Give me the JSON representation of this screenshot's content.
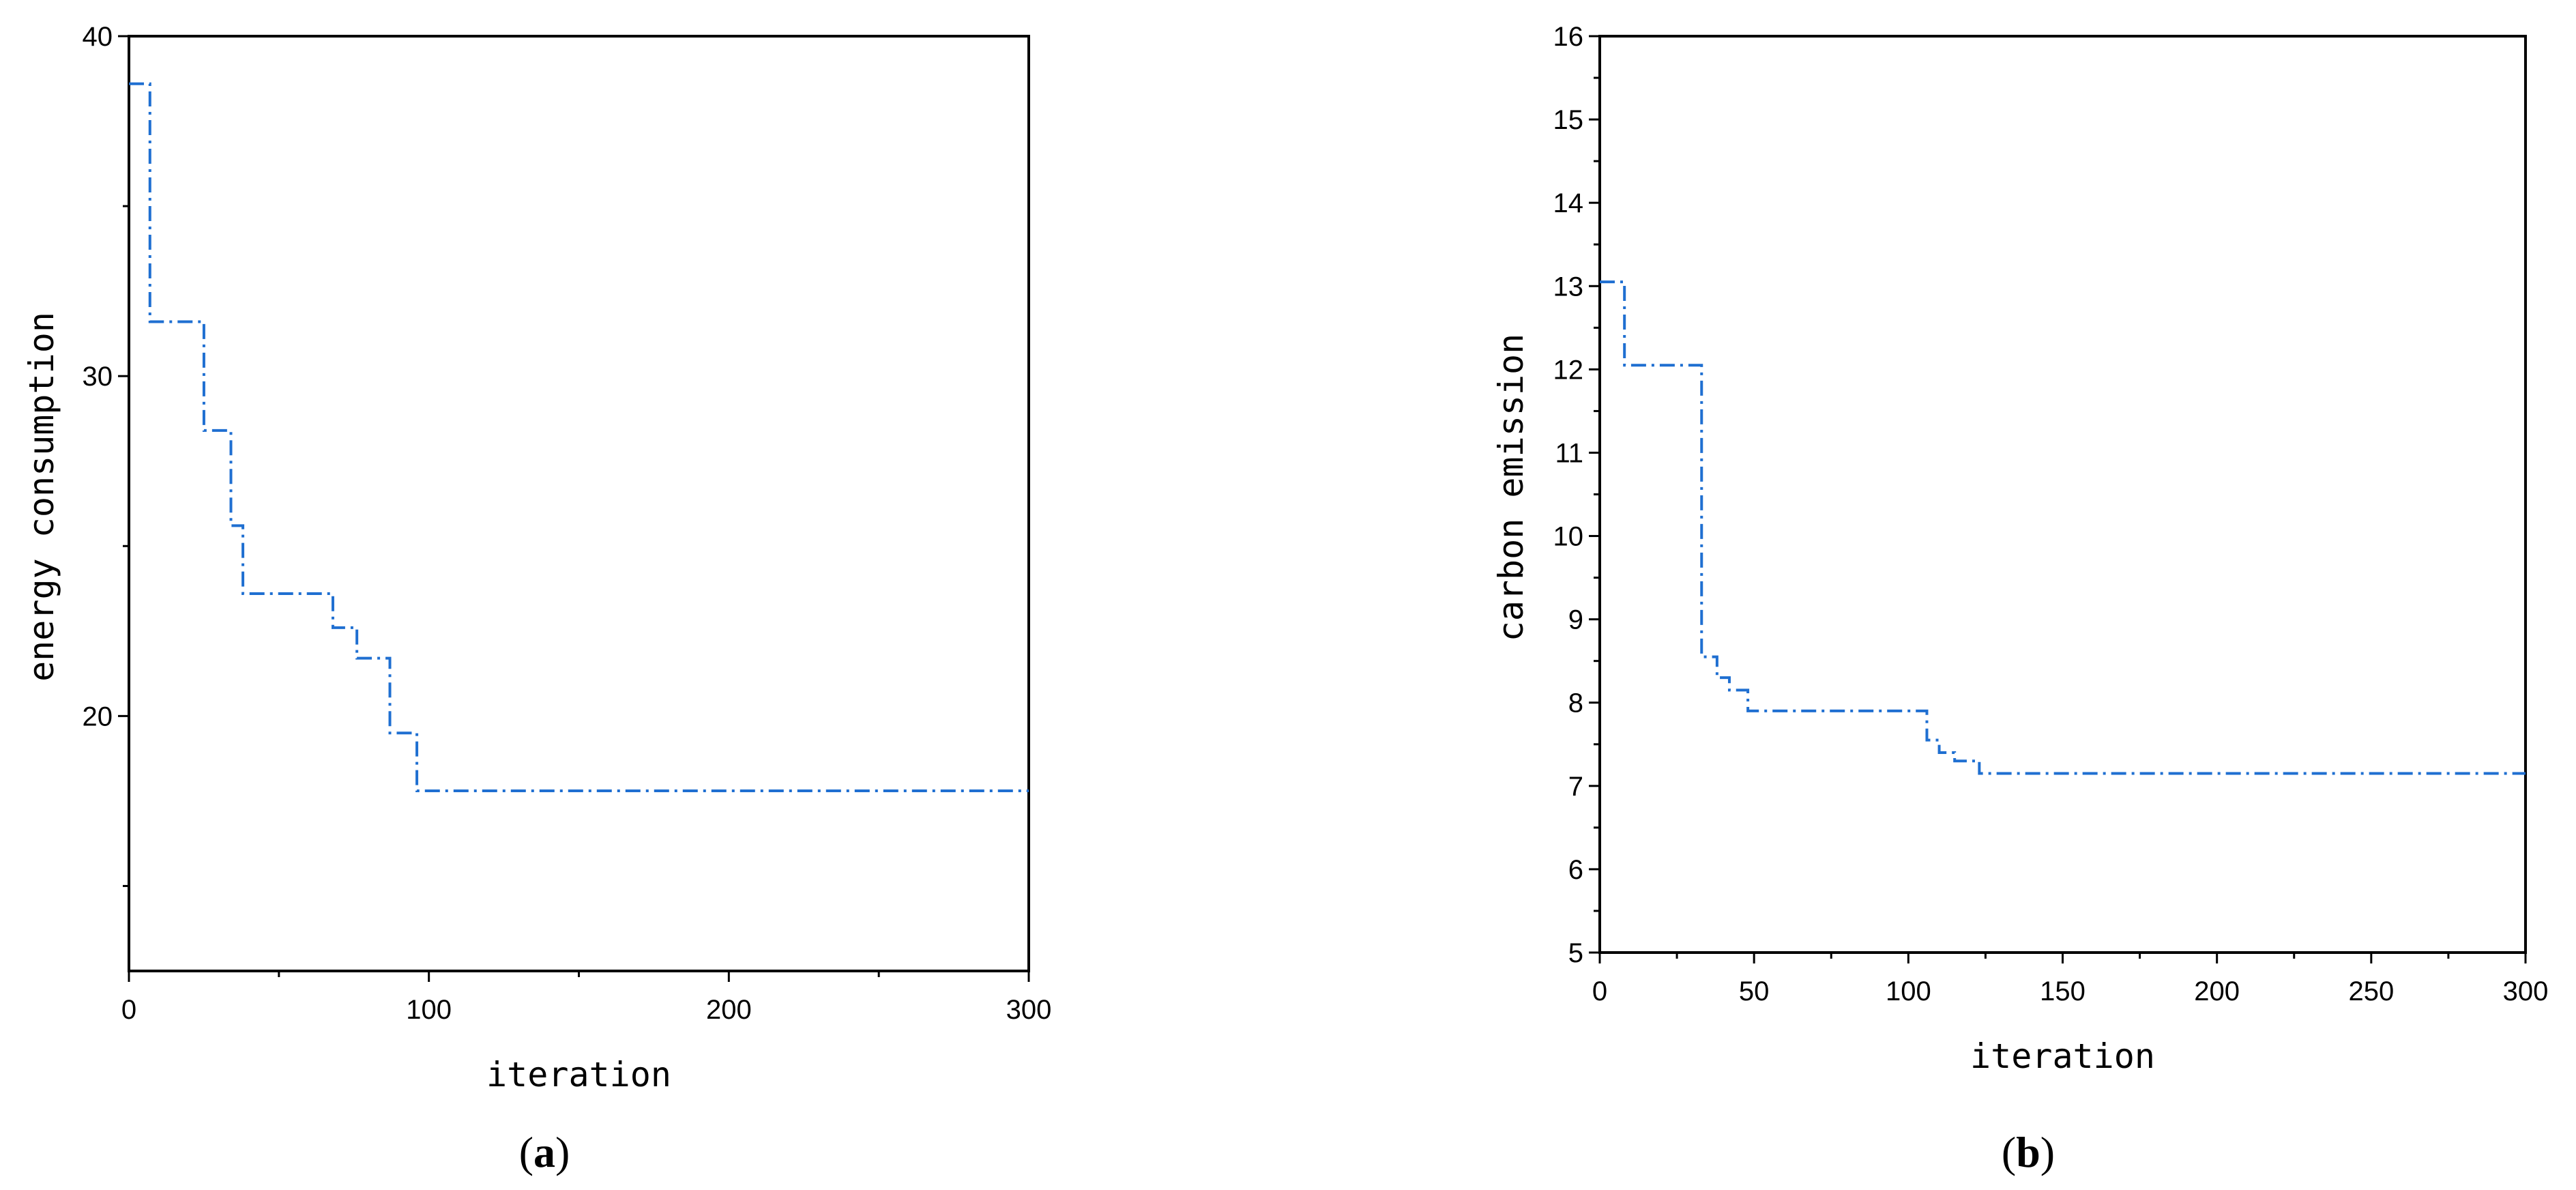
{
  "chart_data": [
    {
      "type": "line",
      "panel_label": "(a)",
      "panel_letter": "a",
      "xlabel": "iteration",
      "ylabel": "energy consumption",
      "xlim": [
        0,
        300
      ],
      "ylim": [
        12.5,
        40
      ],
      "xticks": [
        0,
        100,
        200,
        300
      ],
      "xticks_minor": [
        50,
        150,
        250
      ],
      "yticks": [
        20,
        30,
        40
      ],
      "yticks_minor": [
        15,
        25,
        35
      ],
      "line_style": "dash-dot",
      "line_color": "#1f6fd1",
      "series": [
        {
          "step": true,
          "x": [
            0,
            7,
            25,
            34,
            38,
            68,
            76,
            87,
            96,
            300
          ],
          "values": [
            38.6,
            31.6,
            28.4,
            25.6,
            23.6,
            22.6,
            21.7,
            19.5,
            17.8,
            17.8
          ]
        }
      ]
    },
    {
      "type": "line",
      "panel_label": "(b)",
      "panel_letter": "b",
      "xlabel": "iteration",
      "ylabel": "carbon emission",
      "xlim": [
        0,
        300
      ],
      "ylim": [
        5,
        16
      ],
      "xticks": [
        0,
        50,
        100,
        150,
        200,
        250,
        300
      ],
      "xticks_minor": [
        25,
        75,
        125,
        175,
        225,
        275
      ],
      "yticks": [
        5,
        6,
        7,
        8,
        9,
        10,
        11,
        12,
        13,
        14,
        15,
        16
      ],
      "yticks_minor": [
        5.5,
        6.5,
        7.5,
        8.5,
        9.5,
        10.5,
        11.5,
        12.5,
        13.5,
        14.5,
        15.5
      ],
      "line_style": "dash-dot",
      "line_color": "#1f6fd1",
      "series": [
        {
          "step": true,
          "x": [
            0,
            8,
            33,
            38,
            42,
            48,
            106,
            110,
            115,
            123,
            300
          ],
          "values": [
            13.05,
            12.05,
            8.55,
            8.3,
            8.15,
            7.9,
            7.55,
            7.4,
            7.3,
            7.15,
            7.15
          ]
        }
      ]
    }
  ]
}
